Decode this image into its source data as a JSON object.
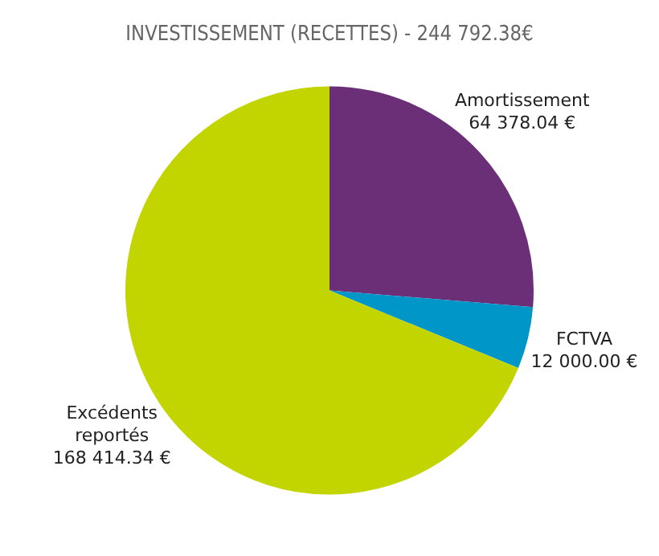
{
  "chart_data": {
    "type": "pie",
    "title": "INVESTISSEMENT (RECETTES) - 244 792.38€",
    "categories": [
      "Amortissement",
      "FCTVA",
      "Excédents reportés"
    ],
    "values": [
      64378.04,
      12000.0,
      168414.34
    ],
    "value_labels": [
      "64 378.04 €",
      "12 000.00 €",
      "168 414.34 €"
    ],
    "colors": [
      "#6b2f78",
      "#0096c8",
      "#c3d500"
    ],
    "legend": false
  }
}
